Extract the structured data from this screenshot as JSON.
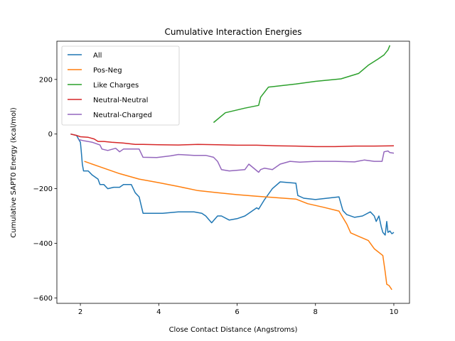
{
  "chart_data": {
    "type": "line",
    "title": "Cumulative Interaction Energies",
    "xlabel": "Close Contact Distance (Angstroms)",
    "ylabel": "Cumulative SAPT0 Energy (kcal/mol)",
    "xlim": [
      1.4,
      10.4
    ],
    "ylim": [
      -620,
      340
    ],
    "xticks": [
      2,
      4,
      6,
      8,
      10
    ],
    "yticks": [
      -600,
      -400,
      -200,
      0,
      200
    ],
    "grid": false,
    "legend_position": "top-left",
    "series": [
      {
        "name": "All",
        "color": "#1f77b4",
        "x": [
          1.75,
          1.9,
          1.93,
          1.95,
          2.0,
          2.02,
          2.05,
          2.08,
          2.2,
          2.3,
          2.45,
          2.5,
          2.6,
          2.7,
          2.85,
          3.0,
          3.1,
          3.3,
          3.4,
          3.5,
          3.6,
          3.7,
          4.1,
          4.5,
          4.6,
          4.9,
          5.1,
          5.2,
          5.35,
          5.5,
          5.6,
          5.8,
          6.0,
          6.2,
          6.3,
          6.5,
          6.55,
          6.7,
          6.9,
          7.1,
          7.5,
          7.55,
          7.7,
          8.0,
          8.3,
          8.6,
          8.7,
          8.8,
          9.0,
          9.2,
          9.4,
          9.5,
          9.55,
          9.62,
          9.68,
          9.72,
          9.78,
          9.82,
          9.85,
          9.9,
          9.95,
          10.0
        ],
        "y": [
          0,
          -5,
          -12,
          -18,
          -30,
          -60,
          -110,
          -135,
          -135,
          -150,
          -165,
          -185,
          -185,
          -200,
          -195,
          -195,
          -185,
          -185,
          -215,
          -230,
          -290,
          -290,
          -290,
          -285,
          -285,
          -285,
          -290,
          -300,
          -325,
          -300,
          -300,
          -315,
          -310,
          -300,
          -290,
          -270,
          -275,
          -240,
          -200,
          -175,
          -180,
          -225,
          -235,
          -240,
          -235,
          -230,
          -280,
          -295,
          -305,
          -300,
          -285,
          -300,
          -320,
          -300,
          -340,
          -360,
          -370,
          -320,
          -360,
          -355,
          -365,
          -360
        ]
      },
      {
        "name": "Pos-Neg",
        "color": "#ff7f0e",
        "x": [
          2.1,
          2.5,
          3.0,
          3.5,
          4.0,
          4.5,
          5.0,
          5.5,
          6.0,
          6.5,
          7.0,
          7.5,
          7.8,
          8.2,
          8.6,
          8.8,
          8.9,
          9.35,
          9.5,
          9.72,
          9.78,
          9.82,
          9.88,
          9.95
        ],
        "y": [
          -100,
          -120,
          -145,
          -165,
          -178,
          -192,
          -207,
          -215,
          -222,
          -228,
          -233,
          -238,
          -255,
          -268,
          -282,
          -330,
          -362,
          -390,
          -420,
          -445,
          -505,
          -550,
          -555,
          -570
        ]
      },
      {
        "name": "Like Charges",
        "color": "#2ca02c",
        "x": [
          5.4,
          5.7,
          6.2,
          6.55,
          6.6,
          6.8,
          7.5,
          8.0,
          8.65,
          9.1,
          9.35,
          9.6,
          9.75,
          9.85,
          9.9
        ],
        "y": [
          42,
          78,
          95,
          105,
          135,
          172,
          183,
          193,
          202,
          222,
          252,
          275,
          290,
          308,
          325
        ]
      },
      {
        "name": "Neutral-Neutral",
        "color": "#d62728",
        "x": [
          1.75,
          1.9,
          2.0,
          2.2,
          2.35,
          2.45,
          2.6,
          2.8,
          3.1,
          3.4,
          3.6,
          4.0,
          4.5,
          5.0,
          5.5,
          6.0,
          6.5,
          7.0,
          7.5,
          8.0,
          8.5,
          9.0,
          9.5,
          10.0
        ],
        "y": [
          0,
          -5,
          -10,
          -12,
          -18,
          -27,
          -27,
          -30,
          -33,
          -38,
          -38,
          -39,
          -40,
          -38,
          -39,
          -41,
          -41,
          -43,
          -44,
          -46,
          -46,
          -44,
          -44,
          -43
        ]
      },
      {
        "name": "Neutral-Charged",
        "color": "#9467bd",
        "x": [
          1.95,
          2.1,
          2.3,
          2.5,
          2.55,
          2.7,
          2.9,
          3.0,
          3.1,
          3.3,
          3.5,
          3.6,
          3.95,
          4.3,
          4.5,
          4.9,
          5.2,
          5.4,
          5.5,
          5.6,
          5.8,
          6.2,
          6.3,
          6.55,
          6.6,
          6.7,
          6.9,
          7.1,
          7.35,
          7.6,
          8.0,
          8.5,
          9.0,
          9.25,
          9.5,
          9.7,
          9.75,
          9.85,
          9.9,
          10.0
        ],
        "y": [
          -20,
          -25,
          -30,
          -40,
          -55,
          -60,
          -52,
          -65,
          -55,
          -55,
          -55,
          -85,
          -86,
          -80,
          -75,
          -78,
          -78,
          -85,
          -100,
          -130,
          -135,
          -130,
          -110,
          -140,
          -130,
          -125,
          -130,
          -110,
          -100,
          -103,
          -100,
          -100,
          -102,
          -95,
          -100,
          -100,
          -65,
          -62,
          -68,
          -70
        ]
      }
    ]
  }
}
